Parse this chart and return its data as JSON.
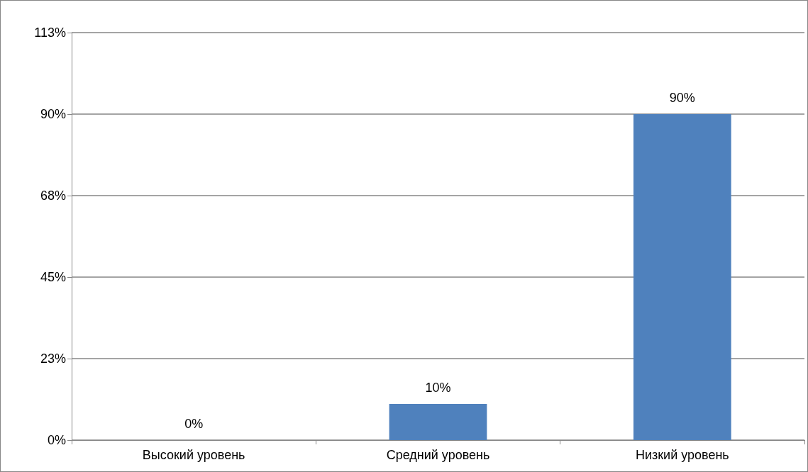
{
  "chart_data": {
    "type": "bar",
    "categories": [
      "Высокий уровень",
      "Средний уровень",
      "Низкий уровень"
    ],
    "values": [
      0,
      10,
      90
    ],
    "color": "#4f81bd",
    "value_labels": [
      "0%",
      "10%",
      "90%"
    ],
    "ylim": [
      0,
      112.5
    ],
    "yticks": [
      {
        "value": 0,
        "label": "0%"
      },
      {
        "value": 22.5,
        "label": "23%"
      },
      {
        "value": 45,
        "label": "45%"
      },
      {
        "value": 67.5,
        "label": "68%"
      },
      {
        "value": 90,
        "label": "90%"
      },
      {
        "value": 112.5,
        "label": "113%"
      }
    ],
    "grid": "y"
  }
}
